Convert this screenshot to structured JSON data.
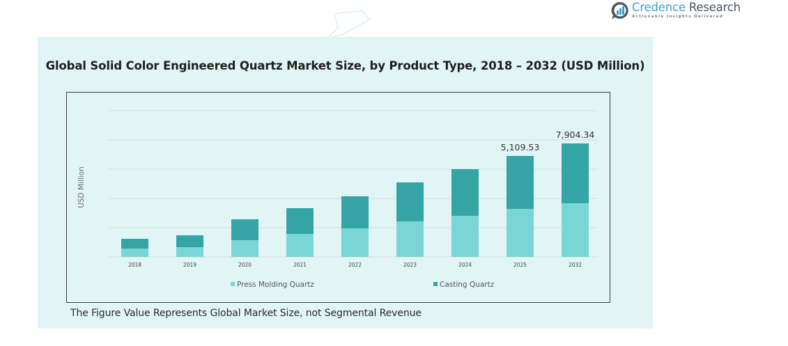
{
  "brand": {
    "name_part1": "Credence",
    "name_part2": " Research",
    "tagline": "Actionable Insights Delivered",
    "icon": "bar-chart-logo-icon"
  },
  "footer_note": "The Figure Value Represents Global Market Size, not Segmental Revenue",
  "colors": {
    "panel_bg": "#e1f5f6",
    "press_molding": "#79d6d5",
    "casting": "#34a5a4",
    "gridline": "#d3dcdc"
  },
  "chart_data": {
    "type": "bar",
    "stacked": true,
    "title": "Global Solid Color Engineered Quartz Market Size, by Product Type, 2018 – 2032 (USD Million)",
    "xlabel": "",
    "ylabel": "USD Million",
    "categories": [
      "2018",
      "2019",
      "2020",
      "2021",
      "2022",
      "2023",
      "2024",
      "2025",
      "2032"
    ],
    "series": [
      {
        "name": "Press Molding Quartz",
        "color": "#79d6d5",
        "values": [
          423,
          493,
          846,
          1163,
          1445,
          1797,
          2079,
          2432,
          3734
        ]
      },
      {
        "name": "Casting Quartz",
        "color": "#34a5a4",
        "values": [
          493,
          599,
          1057,
          1304,
          1621,
          1974,
          2361,
          2677.53,
          4170.34
        ]
      }
    ],
    "totals": [
      916,
      1092,
      1903,
      2467,
      3066,
      3771,
      4440,
      5109.53,
      7904.34
    ],
    "data_labels": [
      {
        "category": "2025",
        "text": "5,109.53"
      },
      {
        "category": "2032",
        "text": "7,904.34"
      }
    ],
    "y_tick_labels_shown": false,
    "gridlines": true,
    "gridline_count": 5,
    "axis_break_after": "2025",
    "legend": {
      "position": "bottom",
      "entries": [
        "Press Molding Quartz",
        "Casting Quartz"
      ]
    }
  }
}
